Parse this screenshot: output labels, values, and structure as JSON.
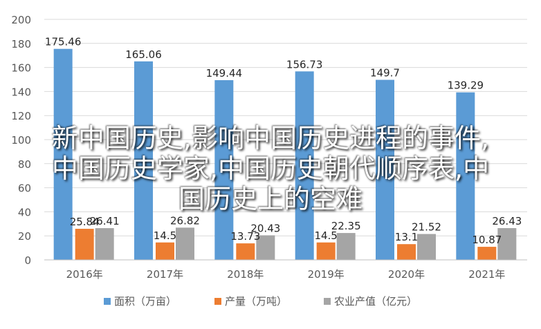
{
  "chart_data": {
    "type": "bar",
    "categories": [
      "2016年",
      "2017年",
      "2018年",
      "2019年",
      "2020年",
      "2021年"
    ],
    "series": [
      {
        "name": "面积（万亩）",
        "color": "#5b9bd5",
        "values": [
          175.46,
          165.06,
          149.44,
          156.73,
          149.7,
          139.29
        ]
      },
      {
        "name": "产量（万吨）",
        "color": "#ed7d31",
        "values": [
          25.84,
          14.5,
          13.73,
          14.5,
          13.1,
          10.87
        ]
      },
      {
        "name": "农业产值（亿元）",
        "color": "#a5a5a5",
        "values": [
          26.41,
          26.82,
          20.43,
          22.35,
          21.52,
          26.43
        ]
      }
    ],
    "value_labels": [
      [
        "175.46",
        "165.06",
        "149.44",
        "156.73",
        "149.7",
        "139.29"
      ],
      [
        "25.84",
        "14.5",
        "13.73",
        "14.5",
        "13.1",
        "10.87"
      ],
      [
        "26.41",
        "26.82",
        "20.43",
        "22.35",
        "21.52",
        "26.43"
      ]
    ],
    "y_ticks": [
      "0",
      "20",
      "40",
      "60",
      "80",
      "100",
      "120",
      "140",
      "160",
      "180",
      "200"
    ],
    "ylim": [
      0,
      200
    ],
    "grid": true,
    "legend_position": "bottom"
  },
  "overlay_text": {
    "line1": "新中国历史,影响中国历史进程的事件,",
    "line2": "中国历史学家,中国历史朝代顺序表,中",
    "line3": "国历史上的空难"
  }
}
